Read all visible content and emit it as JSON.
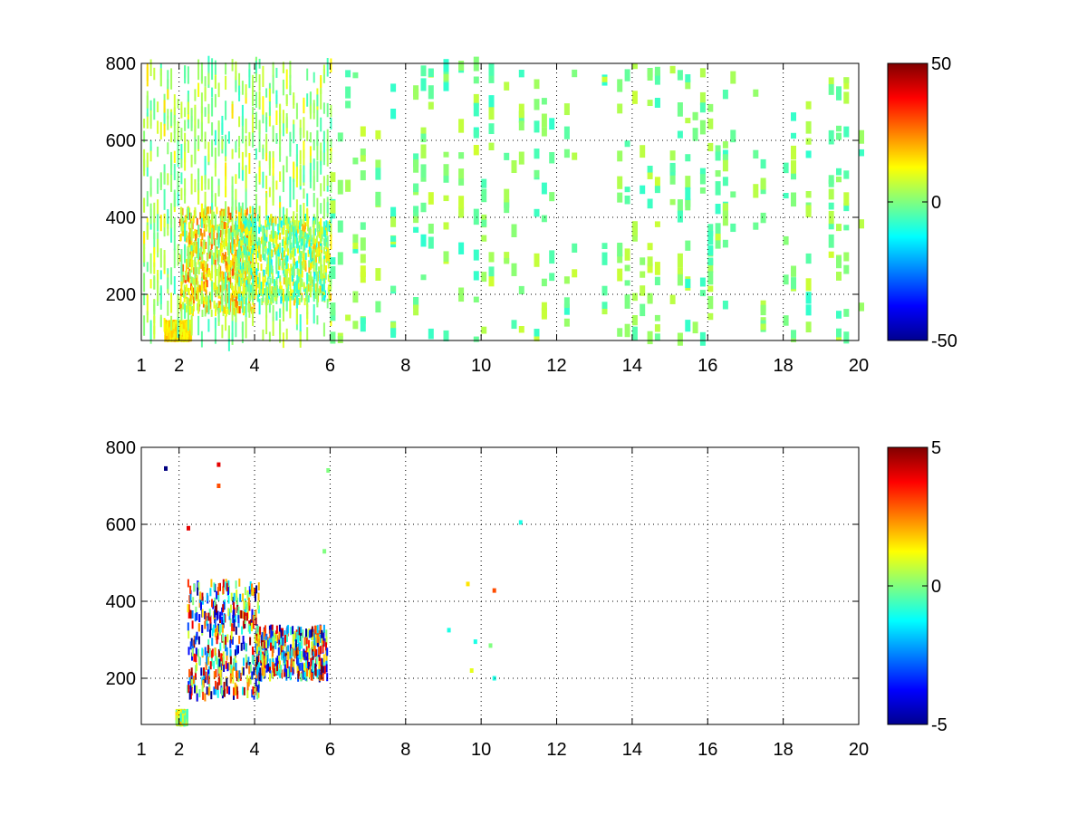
{
  "chart_data": [
    {
      "type": "heatmap",
      "title": "",
      "xlabel": "",
      "ylabel": "",
      "x_ticks": [
        "1",
        "2",
        "4",
        "6",
        "8",
        "10",
        "12",
        "14",
        "16",
        "18",
        "20"
      ],
      "x_tick_values": [
        1,
        2,
        4,
        6,
        8,
        10,
        12,
        14,
        16,
        18,
        20
      ],
      "y_ticks": [
        "200",
        "400",
        "600",
        "800"
      ],
      "y_tick_values": [
        200,
        400,
        600,
        800
      ],
      "xlim": [
        1,
        20
      ],
      "ylim": [
        80,
        800
      ],
      "grid": true,
      "colormap": "jet",
      "clim": [
        -50,
        50
      ],
      "colorbar_ticks": [
        "50",
        "0",
        "-50"
      ],
      "colorbar_tick_values": [
        50,
        0,
        -50
      ],
      "description": "sparse",
      "clusters": [
        {
          "x": [
            2.0,
            4.0
          ],
          "y": [
            150,
            420
          ],
          "value_range": [
            0,
            30
          ]
        },
        {
          "x": [
            3.5,
            6.0
          ],
          "y": [
            180,
            400
          ],
          "value_range": [
            -15,
            20
          ]
        },
        {
          "x": [
            1.6,
            2.3
          ],
          "y": [
            85,
            125
          ],
          "value_range": [
            10,
            20
          ]
        }
      ],
      "sparse_x_range": [
        6,
        20
      ],
      "sparse_value_range": [
        -8,
        8
      ]
    },
    {
      "type": "heatmap",
      "title": "",
      "xlabel": "",
      "ylabel": "",
      "x_ticks": [
        "1",
        "2",
        "4",
        "6",
        "8",
        "10",
        "12",
        "14",
        "16",
        "18",
        "20"
      ],
      "x_tick_values": [
        1,
        2,
        4,
        6,
        8,
        10,
        12,
        14,
        16,
        18,
        20
      ],
      "y_ticks": [
        "200",
        "400",
        "600",
        "800"
      ],
      "y_tick_values": [
        200,
        400,
        600,
        800
      ],
      "xlim": [
        1,
        20
      ],
      "ylim": [
        80,
        800
      ],
      "grid": true,
      "colormap": "jet",
      "clim": [
        -5,
        5
      ],
      "colorbar_ticks": [
        "5",
        "0",
        "-5"
      ],
      "colorbar_tick_values": [
        5,
        0,
        -5
      ],
      "clusters": [
        {
          "x": [
            2.2,
            4.1
          ],
          "y": [
            150,
            450
          ],
          "value_range": [
            -5,
            5
          ]
        },
        {
          "x": [
            4.0,
            5.9
          ],
          "y": [
            200,
            330
          ],
          "value_range": [
            -5,
            5
          ]
        },
        {
          "x": [
            1.9,
            2.2
          ],
          "y": [
            85,
            110
          ],
          "value_range": [
            -1,
            2
          ]
        }
      ],
      "isolated_points": [
        {
          "x": 1.6,
          "y": 745,
          "value": -5
        },
        {
          "x": 3.0,
          "y": 755,
          "value": 4
        },
        {
          "x": 3.0,
          "y": 700,
          "value": 3
        },
        {
          "x": 2.2,
          "y": 590,
          "value": 4
        },
        {
          "x": 5.9,
          "y": 740,
          "value": 0
        },
        {
          "x": 5.8,
          "y": 530,
          "value": 0
        },
        {
          "x": 11.0,
          "y": 605,
          "value": -1
        },
        {
          "x": 9.6,
          "y": 445,
          "value": 1.5
        },
        {
          "x": 10.3,
          "y": 428,
          "value": 3
        },
        {
          "x": 9.1,
          "y": 325,
          "value": -1
        },
        {
          "x": 9.8,
          "y": 295,
          "value": -1
        },
        {
          "x": 10.2,
          "y": 285,
          "value": 0
        },
        {
          "x": 9.7,
          "y": 220,
          "value": 1
        },
        {
          "x": 10.3,
          "y": 200,
          "value": -1
        }
      ]
    }
  ]
}
